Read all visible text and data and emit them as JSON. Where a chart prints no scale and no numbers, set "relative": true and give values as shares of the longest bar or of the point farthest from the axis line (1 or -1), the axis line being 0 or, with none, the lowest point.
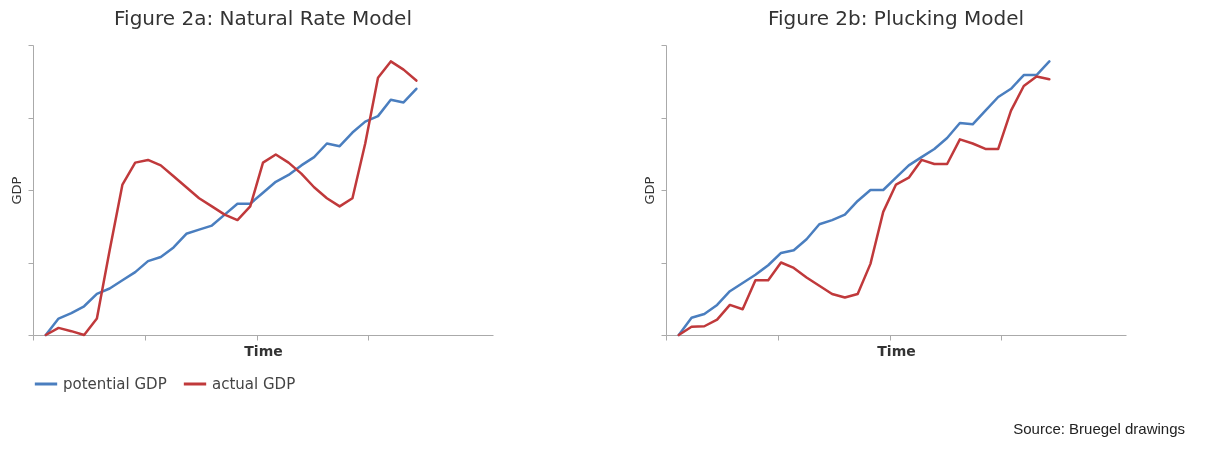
{
  "chart_data": [
    {
      "type": "line",
      "title": "Figure 2a: Natural Rate Model",
      "xlabel": "Time",
      "ylabel": "GDP",
      "relative": true,
      "legend": "bottom",
      "line_style": "solid",
      "categories": [
        null,
        null,
        null,
        null,
        null,
        null,
        null,
        null,
        null,
        null,
        null,
        null,
        null,
        null,
        null,
        null,
        null,
        null,
        null,
        null,
        null,
        null,
        null,
        null,
        null,
        null,
        null,
        null,
        null,
        null
      ],
      "series": [
        {
          "name": "potential GDP",
          "color": "#4a7ebf",
          "values": [
            0,
            0.06,
            0.08,
            0.105,
            0.15,
            0.17,
            0.2,
            0.23,
            0.27,
            0.285,
            0.32,
            0.37,
            0.385,
            0.4,
            0.44,
            0.48,
            0.48,
            0.52,
            0.56,
            0.585,
            0.62,
            0.65,
            0.7,
            0.69,
            0.74,
            0.78,
            0.8,
            0.86,
            0.85,
            0.9
          ]
        },
        {
          "name": "actual GDP",
          "color": "#c0393b",
          "values": [
            0,
            0.026,
            0.014,
            0,
            0.06,
            0.31,
            0.55,
            0.63,
            0.64,
            0.62,
            0.58,
            0.54,
            0.5,
            0.47,
            0.44,
            0.42,
            0.47,
            0.63,
            0.66,
            0.63,
            0.59,
            0.54,
            0.5,
            0.47,
            0.5,
            0.7,
            0.94,
            1,
            0.97,
            0.93
          ]
        }
      ]
    },
    {
      "type": "line",
      "title": "Figure 2b: Plucking Model",
      "xlabel": "Time",
      "ylabel": "GDP",
      "relative": true,
      "legend": "bottom",
      "line_style": "solid",
      "annotations": [
        "Source: Bruegel drawings"
      ],
      "categories": [
        null,
        null,
        null,
        null,
        null,
        null,
        null,
        null,
        null,
        null,
        null,
        null,
        null,
        null,
        null,
        null,
        null,
        null,
        null,
        null,
        null,
        null,
        null,
        null,
        null,
        null,
        null,
        null,
        null,
        null
      ],
      "series": [
        {
          "name": "potential GDP",
          "color": "#4a7ebf",
          "values": [
            0,
            0.063,
            0.077,
            0.11,
            0.16,
            0.19,
            0.22,
            0.255,
            0.3,
            0.31,
            0.35,
            0.405,
            0.42,
            0.44,
            0.49,
            0.53,
            0.53,
            0.575,
            0.62,
            0.65,
            0.68,
            0.72,
            0.775,
            0.77,
            0.82,
            0.87,
            0.9,
            0.95,
            0.95,
            1
          ]
        },
        {
          "name": "actual GDP",
          "color": "#c0393b",
          "values": [
            0,
            0.03,
            0.032,
            0.056,
            0.11,
            0.094,
            0.2,
            0.2,
            0.265,
            0.245,
            0.21,
            0.18,
            0.15,
            0.137,
            0.15,
            0.26,
            0.45,
            0.55,
            0.575,
            0.64,
            0.625,
            0.625,
            0.715,
            0.7,
            0.68,
            0.68,
            0.82,
            0.91,
            0.945,
            0.935
          ]
        }
      ]
    }
  ]
}
